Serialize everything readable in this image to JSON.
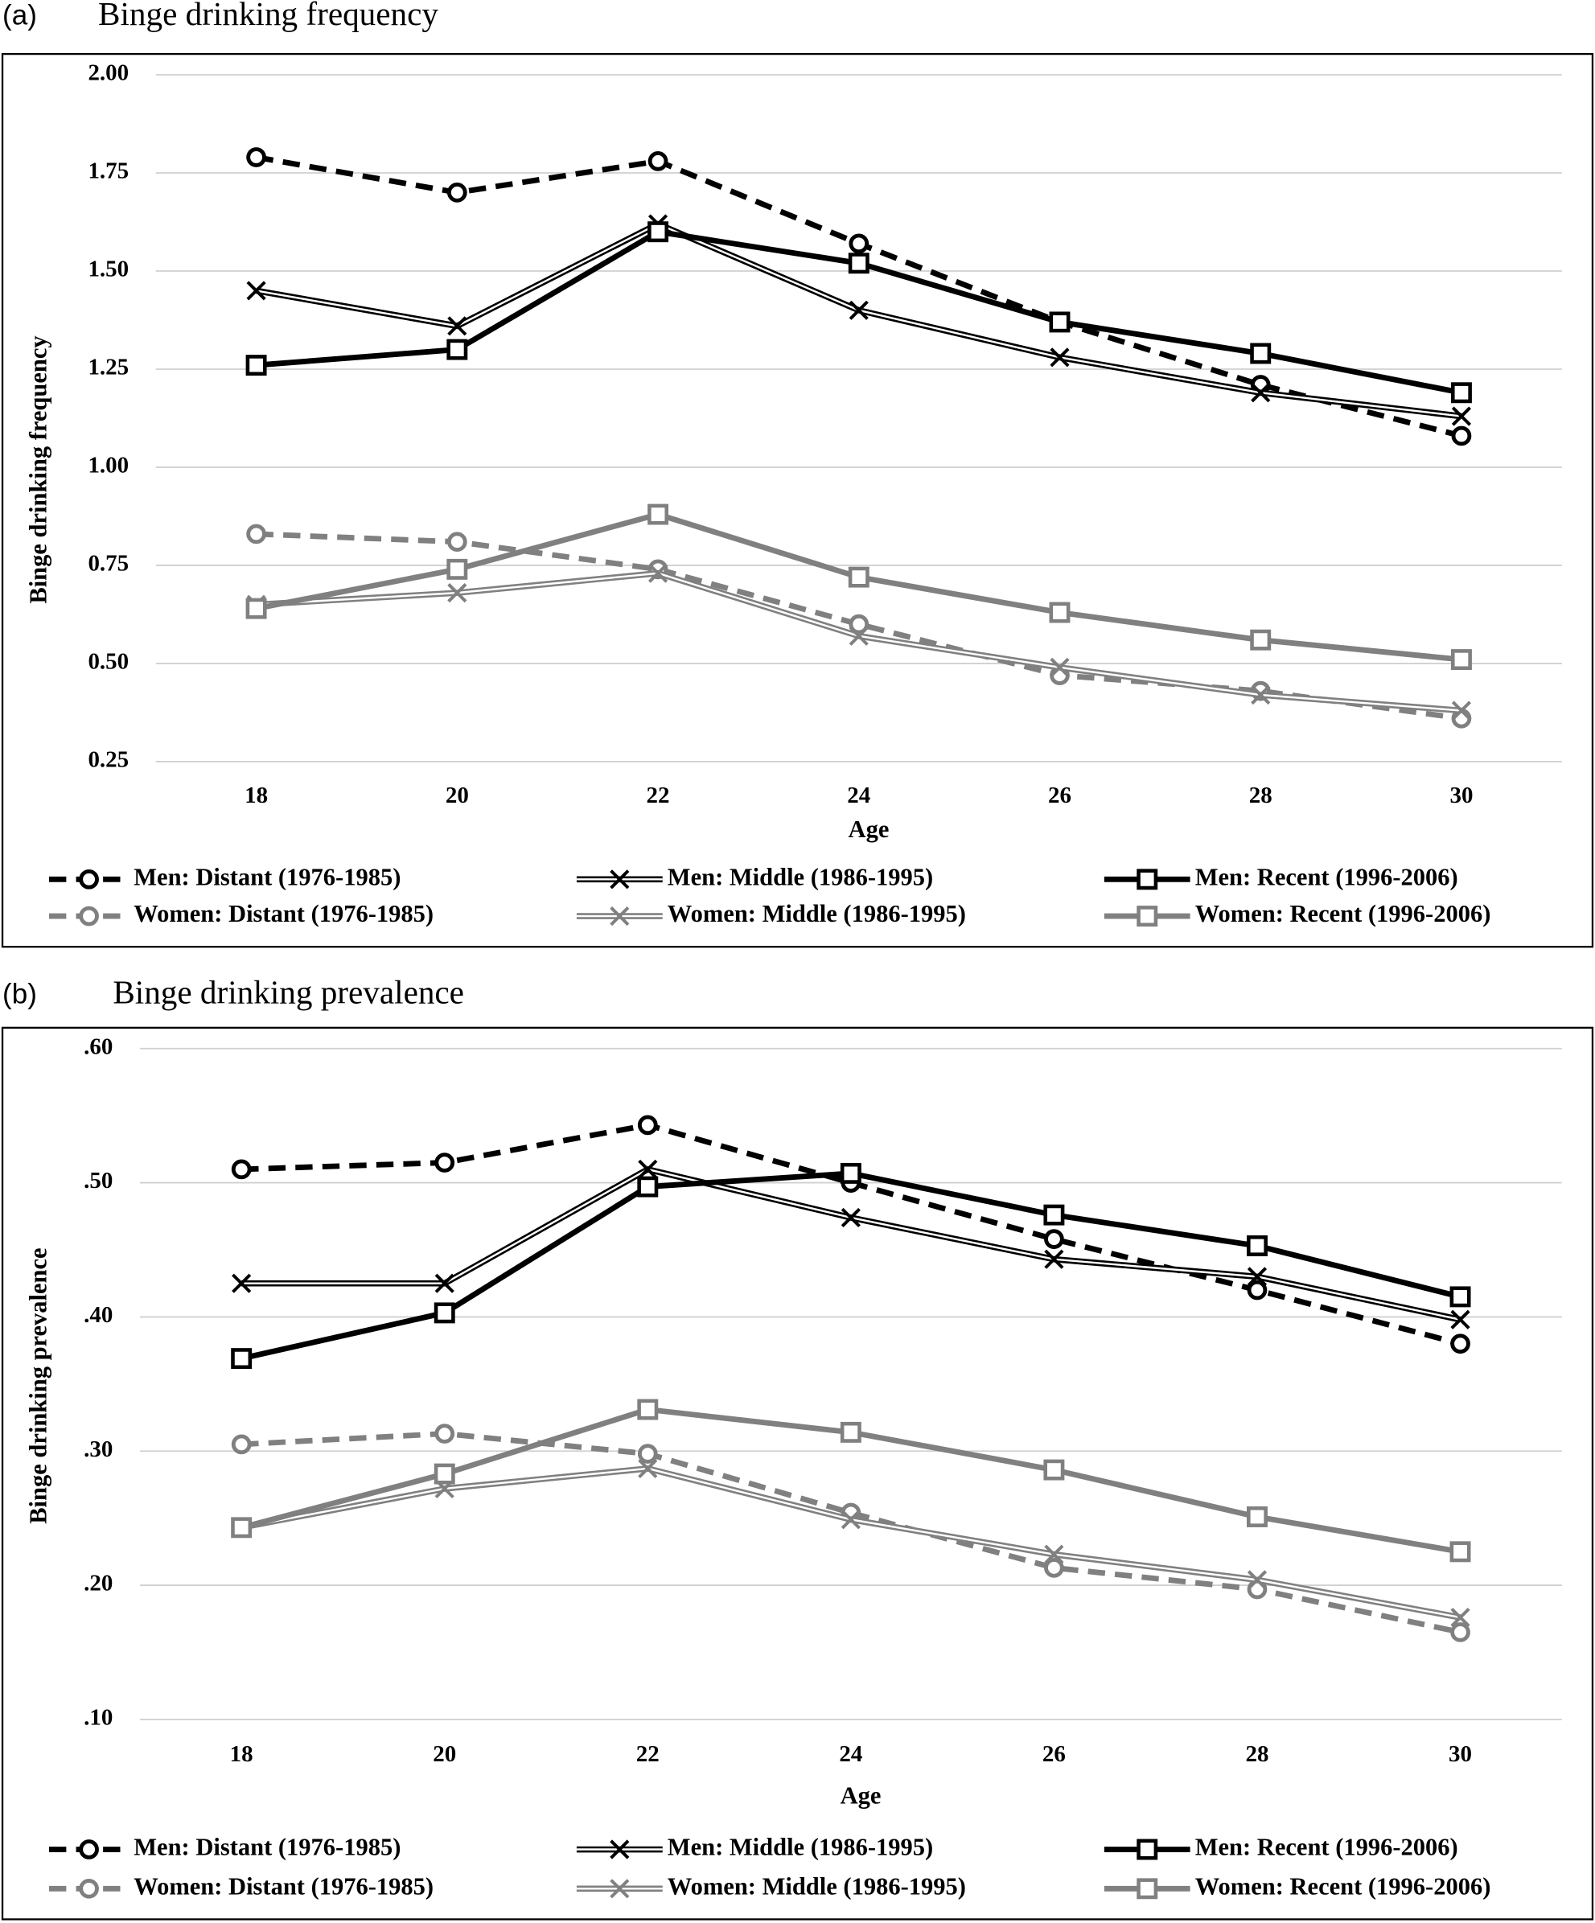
{
  "chart_data": [
    {
      "type": "line",
      "panel": "(a)",
      "title": "Binge drinking frequency",
      "x_label": "Age",
      "y_label": "Binge drinking frequency",
      "categories": [
        "18",
        "20",
        "22",
        "24",
        "26",
        "28",
        "30"
      ],
      "ylim": [
        0.25,
        2.0
      ],
      "yticks": [
        {
          "value": 0.25,
          "label": "0.25"
        },
        {
          "value": 0.5,
          "label": "0.50"
        },
        {
          "value": 0.75,
          "label": "0.75"
        },
        {
          "value": 1.0,
          "label": "1.00"
        },
        {
          "value": 1.25,
          "label": "1.25"
        },
        {
          "value": 1.5,
          "label": "1.50"
        },
        {
          "value": 1.75,
          "label": "1.75"
        },
        {
          "value": 2.0,
          "label": "2.00"
        }
      ],
      "grid": true,
      "series": [
        {
          "name": "Men: Distant (1976-1985)",
          "color": "#000000",
          "dash": true,
          "double": false,
          "marker": "circle",
          "values": [
            1.79,
            1.7,
            1.78,
            1.57,
            1.37,
            1.21,
            1.08
          ]
        },
        {
          "name": "Men: Middle (1986-1995)",
          "color": "#000000",
          "dash": false,
          "double": true,
          "marker": "x",
          "values": [
            1.45,
            1.36,
            1.62,
            1.4,
            1.28,
            1.19,
            1.13
          ]
        },
        {
          "name": "Men: Recent (1996-2006)",
          "color": "#000000",
          "dash": false,
          "double": false,
          "marker": "square",
          "values": [
            1.26,
            1.3,
            1.6,
            1.52,
            1.37,
            1.29,
            1.19
          ]
        },
        {
          "name": "Women: Distant (1976-1985)",
          "color": "#808080",
          "dash": true,
          "double": false,
          "marker": "circle",
          "values": [
            0.83,
            0.81,
            0.74,
            0.6,
            0.47,
            0.43,
            0.36
          ]
        },
        {
          "name": "Women: Middle (1986-1995)",
          "color": "#808080",
          "dash": false,
          "double": true,
          "marker": "x",
          "values": [
            0.65,
            0.68,
            0.73,
            0.57,
            0.49,
            0.42,
            0.38
          ]
        },
        {
          "name": "Women: Recent (1996-2006)",
          "color": "#808080",
          "dash": false,
          "double": false,
          "marker": "square",
          "values": [
            0.64,
            0.74,
            0.88,
            0.72,
            0.63,
            0.56,
            0.51
          ]
        }
      ]
    },
    {
      "type": "line",
      "panel": "(b)",
      "title": "Binge drinking prevalence",
      "x_label": "Age",
      "y_label": "Binge drinking prevalence",
      "categories": [
        "18",
        "20",
        "22",
        "24",
        "26",
        "28",
        "30"
      ],
      "ylim": [
        0.1,
        0.6
      ],
      "yticks": [
        {
          "value": 0.1,
          "label": ".10"
        },
        {
          "value": 0.2,
          "label": ".20"
        },
        {
          "value": 0.3,
          "label": ".30"
        },
        {
          "value": 0.4,
          "label": ".40"
        },
        {
          "value": 0.5,
          "label": ".50"
        },
        {
          "value": 0.6,
          "label": ".60"
        }
      ],
      "grid": true,
      "series": [
        {
          "name": "Men: Distant (1976-1985)",
          "color": "#000000",
          "dash": true,
          "double": false,
          "marker": "circle",
          "values": [
            0.51,
            0.515,
            0.543,
            0.5,
            0.458,
            0.42,
            0.38
          ]
        },
        {
          "name": "Men: Middle (1986-1995)",
          "color": "#000000",
          "dash": false,
          "double": true,
          "marker": "x",
          "values": [
            0.425,
            0.425,
            0.51,
            0.474,
            0.443,
            0.43,
            0.398
          ]
        },
        {
          "name": "Men: Recent (1996-2006)",
          "color": "#000000",
          "dash": false,
          "double": false,
          "marker": "square",
          "values": [
            0.369,
            0.403,
            0.497,
            0.507,
            0.476,
            0.453,
            0.415
          ]
        },
        {
          "name": "Women: Distant (1976-1985)",
          "color": "#808080",
          "dash": true,
          "double": false,
          "marker": "circle",
          "values": [
            0.305,
            0.313,
            0.298,
            0.254,
            0.213,
            0.197,
            0.165
          ]
        },
        {
          "name": "Women: Middle (1986-1995)",
          "color": "#808080",
          "dash": false,
          "double": true,
          "marker": "x",
          "values": [
            0.243,
            0.272,
            0.287,
            0.249,
            0.223,
            0.204,
            0.176
          ]
        },
        {
          "name": "Women: Recent (1996-2006)",
          "color": "#808080",
          "dash": false,
          "double": false,
          "marker": "square",
          "values": [
            0.243,
            0.283,
            0.331,
            0.314,
            0.286,
            0.251,
            0.225
          ]
        }
      ]
    }
  ]
}
